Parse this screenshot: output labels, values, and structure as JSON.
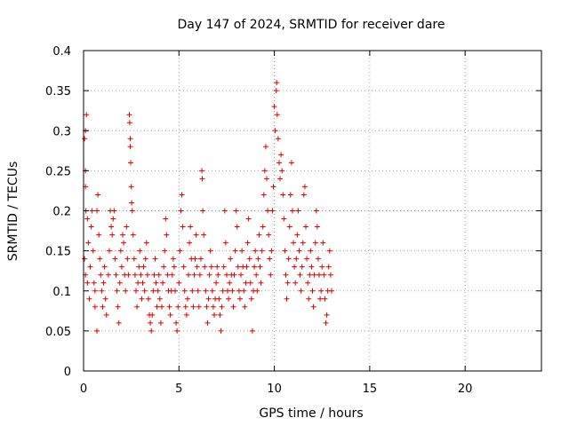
{
  "chart_data": {
    "type": "scatter",
    "title": "Day 147 of 2024, SRMTID for receiver dare",
    "xlabel": "GPS time / hours",
    "ylabel": "SRMTID / TECUs",
    "xlim": [
      0,
      24
    ],
    "ylim": [
      0,
      0.4
    ],
    "x_ticks": [
      0,
      5,
      10,
      15,
      20
    ],
    "y_ticks": [
      0,
      0.05,
      0.1,
      0.15,
      0.2,
      0.25,
      0.3,
      0.35,
      0.4
    ],
    "x_tick_labels": [
      "0",
      "5",
      "10",
      "15",
      "20"
    ],
    "y_tick_labels": [
      "0",
      "0.05",
      "0.1",
      "0.15",
      "0.2",
      "0.25",
      "0.3",
      "0.35",
      "0.4"
    ],
    "grid": true,
    "marker": "+",
    "marker_color": "#dd0000",
    "series": [
      {
        "name": "SRMTID",
        "points": [
          [
            0.05,
            0.29
          ],
          [
            0.1,
            0.3
          ],
          [
            0.15,
            0.32
          ],
          [
            0.1,
            0.25
          ],
          [
            0.1,
            0.23
          ],
          [
            0.12,
            0.2
          ],
          [
            0.2,
            0.19
          ],
          [
            0.25,
            0.16
          ],
          [
            0.05,
            0.14
          ],
          [
            0.1,
            0.12
          ],
          [
            0.2,
            0.11
          ],
          [
            0.3,
            0.09
          ],
          [
            0.35,
            0.13
          ],
          [
            0.4,
            0.18
          ],
          [
            0.45,
            0.2
          ],
          [
            0.5,
            0.15
          ],
          [
            0.55,
            0.11
          ],
          [
            0.6,
            0.1
          ],
          [
            0.6,
            0.08
          ],
          [
            0.7,
            0.2
          ],
          [
            0.75,
            0.22
          ],
          [
            0.8,
            0.17
          ],
          [
            0.85,
            0.14
          ],
          [
            0.9,
            0.12
          ],
          [
            0.95,
            0.1
          ],
          [
            1.0,
            0.08
          ],
          [
            1.05,
            0.11
          ],
          [
            1.1,
            0.13
          ],
          [
            1.15,
            0.09
          ],
          [
            1.2,
            0.07
          ],
          [
            0.7,
            0.05
          ],
          [
            1.3,
            0.12
          ],
          [
            1.35,
            0.15
          ],
          [
            1.4,
            0.2
          ],
          [
            1.45,
            0.18
          ],
          [
            1.5,
            0.17
          ],
          [
            1.55,
            0.19
          ],
          [
            1.6,
            0.2
          ],
          [
            1.65,
            0.14
          ],
          [
            1.7,
            0.12
          ],
          [
            1.75,
            0.1
          ],
          [
            1.8,
            0.08
          ],
          [
            1.85,
            0.06
          ],
          [
            1.9,
            0.11
          ],
          [
            1.95,
            0.15
          ],
          [
            2.0,
            0.13
          ],
          [
            2.05,
            0.17
          ],
          [
            2.1,
            0.16
          ],
          [
            2.15,
            0.12
          ],
          [
            2.2,
            0.1
          ],
          [
            2.25,
            0.18
          ],
          [
            2.3,
            0.14
          ],
          [
            2.35,
            0.12
          ],
          [
            2.4,
            0.32
          ],
          [
            2.42,
            0.31
          ],
          [
            2.45,
            0.29
          ],
          [
            2.45,
            0.28
          ],
          [
            2.47,
            0.26
          ],
          [
            2.5,
            0.23
          ],
          [
            2.52,
            0.21
          ],
          [
            2.55,
            0.2
          ],
          [
            2.6,
            0.17
          ],
          [
            2.65,
            0.14
          ],
          [
            2.7,
            0.12
          ],
          [
            2.75,
            0.1
          ],
          [
            2.8,
            0.08
          ],
          [
            2.85,
            0.11
          ],
          [
            2.9,
            0.13
          ],
          [
            2.95,
            0.15
          ],
          [
            3.0,
            0.12
          ],
          [
            3.05,
            0.09
          ],
          [
            3.1,
            0.11
          ],
          [
            3.15,
            0.13
          ],
          [
            3.2,
            0.1
          ],
          [
            3.25,
            0.14
          ],
          [
            3.3,
            0.16
          ],
          [
            3.35,
            0.12
          ],
          [
            3.4,
            0.09
          ],
          [
            3.45,
            0.07
          ],
          [
            3.5,
            0.06
          ],
          [
            3.55,
            0.05
          ],
          [
            3.6,
            0.07
          ],
          [
            3.65,
            0.1
          ],
          [
            3.7,
            0.12
          ],
          [
            3.75,
            0.14
          ],
          [
            3.8,
            0.11
          ],
          [
            3.85,
            0.08
          ],
          [
            3.9,
            0.1
          ],
          [
            3.95,
            0.12
          ],
          [
            4.0,
            0.09
          ],
          [
            4.05,
            0.06
          ],
          [
            4.1,
            0.08
          ],
          [
            4.15,
            0.11
          ],
          [
            4.2,
            0.13
          ],
          [
            4.25,
            0.15
          ],
          [
            4.3,
            0.19
          ],
          [
            4.35,
            0.17
          ],
          [
            4.4,
            0.12
          ],
          [
            4.45,
            0.1
          ],
          [
            4.5,
            0.08
          ],
          [
            4.55,
            0.07
          ],
          [
            4.6,
            0.1
          ],
          [
            4.65,
            0.12
          ],
          [
            4.7,
            0.14
          ],
          [
            4.75,
            0.13
          ],
          [
            4.8,
            0.1
          ],
          [
            4.85,
            0.06
          ],
          [
            4.9,
            0.05
          ],
          [
            4.95,
            0.08
          ],
          [
            5.0,
            0.11
          ],
          [
            5.05,
            0.15
          ],
          [
            5.1,
            0.2
          ],
          [
            5.15,
            0.22
          ],
          [
            5.2,
            0.18
          ],
          [
            5.25,
            0.13
          ],
          [
            5.3,
            0.1
          ],
          [
            5.35,
            0.08
          ],
          [
            5.4,
            0.07
          ],
          [
            5.45,
            0.09
          ],
          [
            5.5,
            0.12
          ],
          [
            5.55,
            0.16
          ],
          [
            5.6,
            0.18
          ],
          [
            5.65,
            0.14
          ],
          [
            5.7,
            0.1
          ],
          [
            5.75,
            0.08
          ],
          [
            5.8,
            0.12
          ],
          [
            5.85,
            0.14
          ],
          [
            5.9,
            0.17
          ],
          [
            5.95,
            0.13
          ],
          [
            6.0,
            0.1
          ],
          [
            6.05,
            0.08
          ],
          [
            6.1,
            0.12
          ],
          [
            6.15,
            0.14
          ],
          [
            6.2,
            0.25
          ],
          [
            6.22,
            0.24
          ],
          [
            6.25,
            0.2
          ],
          [
            6.3,
            0.17
          ],
          [
            6.35,
            0.13
          ],
          [
            6.4,
            0.1
          ],
          [
            6.45,
            0.08
          ],
          [
            6.5,
            0.06
          ],
          [
            6.55,
            0.09
          ],
          [
            6.6,
            0.12
          ],
          [
            6.65,
            0.15
          ],
          [
            6.7,
            0.13
          ],
          [
            6.75,
            0.1
          ],
          [
            6.8,
            0.08
          ],
          [
            6.85,
            0.07
          ],
          [
            6.9,
            0.09
          ],
          [
            6.95,
            0.11
          ],
          [
            7.0,
            0.13
          ],
          [
            7.05,
            0.12
          ],
          [
            7.1,
            0.09
          ],
          [
            7.15,
            0.07
          ],
          [
            7.2,
            0.05
          ],
          [
            7.25,
            0.08
          ],
          [
            7.3,
            0.1
          ],
          [
            7.35,
            0.13
          ],
          [
            7.4,
            0.2
          ],
          [
            7.45,
            0.16
          ],
          [
            7.5,
            0.12
          ],
          [
            7.55,
            0.1
          ],
          [
            7.6,
            0.09
          ],
          [
            7.65,
            0.11
          ],
          [
            7.7,
            0.14
          ],
          [
            7.75,
            0.12
          ],
          [
            7.8,
            0.1
          ],
          [
            7.85,
            0.08
          ],
          [
            7.9,
            0.12
          ],
          [
            7.95,
            0.15
          ],
          [
            8.0,
            0.2
          ],
          [
            8.05,
            0.18
          ],
          [
            8.1,
            0.13
          ],
          [
            8.15,
            0.1
          ],
          [
            8.2,
            0.09
          ],
          [
            8.25,
            0.12
          ],
          [
            8.3,
            0.15
          ],
          [
            8.35,
            0.13
          ],
          [
            8.4,
            0.1
          ],
          [
            8.45,
            0.08
          ],
          [
            8.5,
            0.11
          ],
          [
            8.55,
            0.13
          ],
          [
            8.6,
            0.16
          ],
          [
            8.65,
            0.19
          ],
          [
            8.7,
            0.14
          ],
          [
            8.75,
            0.11
          ],
          [
            8.8,
            0.09
          ],
          [
            8.85,
            0.05
          ],
          [
            8.9,
            0.1
          ],
          [
            8.95,
            0.13
          ],
          [
            9.0,
            0.15
          ],
          [
            9.05,
            0.12
          ],
          [
            9.1,
            0.1
          ],
          [
            9.15,
            0.14
          ],
          [
            9.2,
            0.17
          ],
          [
            9.25,
            0.13
          ],
          [
            9.3,
            0.11
          ],
          [
            9.35,
            0.15
          ],
          [
            9.4,
            0.18
          ],
          [
            9.45,
            0.22
          ],
          [
            9.5,
            0.25
          ],
          [
            9.55,
            0.28
          ],
          [
            9.6,
            0.24
          ],
          [
            9.65,
            0.2
          ],
          [
            9.7,
            0.17
          ],
          [
            9.75,
            0.14
          ],
          [
            9.8,
            0.12
          ],
          [
            9.85,
            0.15
          ],
          [
            9.9,
            0.2
          ],
          [
            9.95,
            0.23
          ],
          [
            10.0,
            0.33
          ],
          [
            10.05,
            0.3
          ],
          [
            10.1,
            0.35
          ],
          [
            10.12,
            0.36
          ],
          [
            10.15,
            0.32
          ],
          [
            10.2,
            0.29
          ],
          [
            10.25,
            0.26
          ],
          [
            10.3,
            0.24
          ],
          [
            10.35,
            0.27
          ],
          [
            10.4,
            0.25
          ],
          [
            10.45,
            0.22
          ],
          [
            10.5,
            0.19
          ],
          [
            10.55,
            0.15
          ],
          [
            10.6,
            0.12
          ],
          [
            10.65,
            0.09
          ],
          [
            10.7,
            0.11
          ],
          [
            10.75,
            0.14
          ],
          [
            10.8,
            0.18
          ],
          [
            10.85,
            0.22
          ],
          [
            10.9,
            0.26
          ],
          [
            10.95,
            0.2
          ],
          [
            11.0,
            0.16
          ],
          [
            11.05,
            0.13
          ],
          [
            11.1,
            0.11
          ],
          [
            11.15,
            0.14
          ],
          [
            11.2,
            0.17
          ],
          [
            11.25,
            0.2
          ],
          [
            11.3,
            0.15
          ],
          [
            11.35,
            0.12
          ],
          [
            11.4,
            0.1
          ],
          [
            11.45,
            0.13
          ],
          [
            11.5,
            0.16
          ],
          [
            11.55,
            0.22
          ],
          [
            11.6,
            0.23
          ],
          [
            11.65,
            0.18
          ],
          [
            11.7,
            0.14
          ],
          [
            11.75,
            0.11
          ],
          [
            11.8,
            0.09
          ],
          [
            11.85,
            0.12
          ],
          [
            11.9,
            0.15
          ],
          [
            11.95,
            0.13
          ],
          [
            12.0,
            0.1
          ],
          [
            12.05,
            0.08
          ],
          [
            12.1,
            0.12
          ],
          [
            12.15,
            0.16
          ],
          [
            12.2,
            0.2
          ],
          [
            12.25,
            0.18
          ],
          [
            12.3,
            0.14
          ],
          [
            12.35,
            0.12
          ],
          [
            12.4,
            0.09
          ],
          [
            12.45,
            0.1
          ],
          [
            12.5,
            0.13
          ],
          [
            12.55,
            0.16
          ],
          [
            12.6,
            0.12
          ],
          [
            12.65,
            0.09
          ],
          [
            12.7,
            0.06
          ],
          [
            12.75,
            0.07
          ],
          [
            12.8,
            0.1
          ],
          [
            12.85,
            0.13
          ],
          [
            12.9,
            0.15
          ],
          [
            12.95,
            0.12
          ],
          [
            13.0,
            0.1
          ]
        ]
      }
    ]
  }
}
